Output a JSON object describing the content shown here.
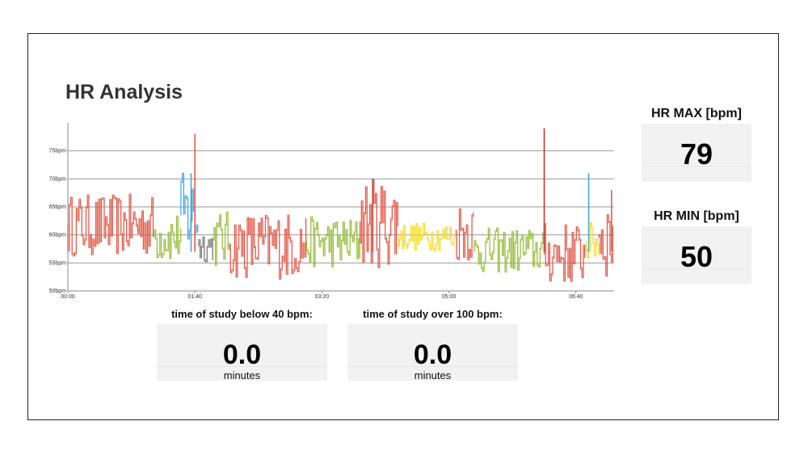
{
  "title": "HR Analysis",
  "hr_max": {
    "label": "HR MAX [bpm]",
    "value": "79"
  },
  "hr_min": {
    "label": "HR MIN [bpm]",
    "value": "50"
  },
  "below_40": {
    "label": "time of study below 40 bpm:",
    "value": "0.0",
    "unit": "minutes"
  },
  "over_100": {
    "label": "time of study over 100 bpm:",
    "value": "0.0",
    "unit": "minutes"
  },
  "colors": {
    "red": "#e35b4b",
    "darkred": "#c0392b",
    "green": "#98bf3d",
    "blue": "#41a9e0",
    "gray": "#7a7a7a",
    "yellow": "#f5dd2a"
  },
  "chart_data": {
    "type": "bar",
    "ylim": [
      50,
      80
    ],
    "y_ticks": [
      {
        "value": 50,
        "label": "50bpm"
      },
      {
        "value": 55,
        "label": "55bpm"
      },
      {
        "value": 60,
        "label": "60bpm"
      },
      {
        "value": 65,
        "label": "65bpm"
      },
      {
        "value": 70,
        "label": "70bpm"
      },
      {
        "value": 75,
        "label": "75bpm"
      }
    ],
    "x_ticks": [
      {
        "minutes": 0,
        "label": "00:00"
      },
      {
        "minutes": 100,
        "label": "01:40"
      },
      {
        "minutes": 200,
        "label": "03:20"
      },
      {
        "minutes": 300,
        "label": "05:00"
      },
      {
        "minutes": 400,
        "label": "06:40"
      }
    ],
    "xlim_minutes": [
      0,
      430
    ],
    "series": [
      {
        "color": "red",
        "start": 0,
        "end": 68,
        "min": 56,
        "max": 67
      },
      {
        "color": "green",
        "start": 68,
        "end": 89,
        "min": 55,
        "max": 64
      },
      {
        "color": "blue",
        "start": 89,
        "end": 103,
        "min": 56,
        "max": 71
      },
      {
        "color": "gray",
        "start": 103,
        "end": 115,
        "min": 55,
        "max": 61
      },
      {
        "color": "green",
        "start": 115,
        "end": 128,
        "min": 54,
        "max": 64
      },
      {
        "color": "red",
        "start": 128,
        "end": 188,
        "min": 52,
        "max": 64
      },
      {
        "color": "green",
        "start": 188,
        "end": 230,
        "min": 54,
        "max": 63
      },
      {
        "color": "red",
        "start": 230,
        "end": 260,
        "min": 54,
        "max": 70
      },
      {
        "color": "yellow",
        "start": 260,
        "end": 306,
        "min": 57,
        "max": 62
      },
      {
        "color": "red",
        "start": 306,
        "end": 320,
        "min": 55,
        "max": 66
      },
      {
        "color": "green",
        "start": 320,
        "end": 375,
        "min": 53,
        "max": 61
      },
      {
        "color": "red",
        "start": 375,
        "end": 408,
        "min": 51,
        "max": 62
      },
      {
        "color": "yellow",
        "start": 408,
        "end": 418,
        "min": 55,
        "max": 62
      },
      {
        "color": "red",
        "start": 418,
        "end": 430,
        "min": 52,
        "max": 67
      }
    ],
    "spikes": [
      {
        "minutes": 97,
        "value": 71,
        "color": "blue"
      },
      {
        "minutes": 100,
        "value": 78,
        "color": "red"
      },
      {
        "minutes": 240,
        "value": 70,
        "color": "darkred"
      },
      {
        "minutes": 375,
        "value": 79,
        "color": "darkred"
      },
      {
        "minutes": 410,
        "value": 71,
        "color": "blue"
      },
      {
        "minutes": 428,
        "value": 68,
        "color": "red"
      }
    ]
  }
}
